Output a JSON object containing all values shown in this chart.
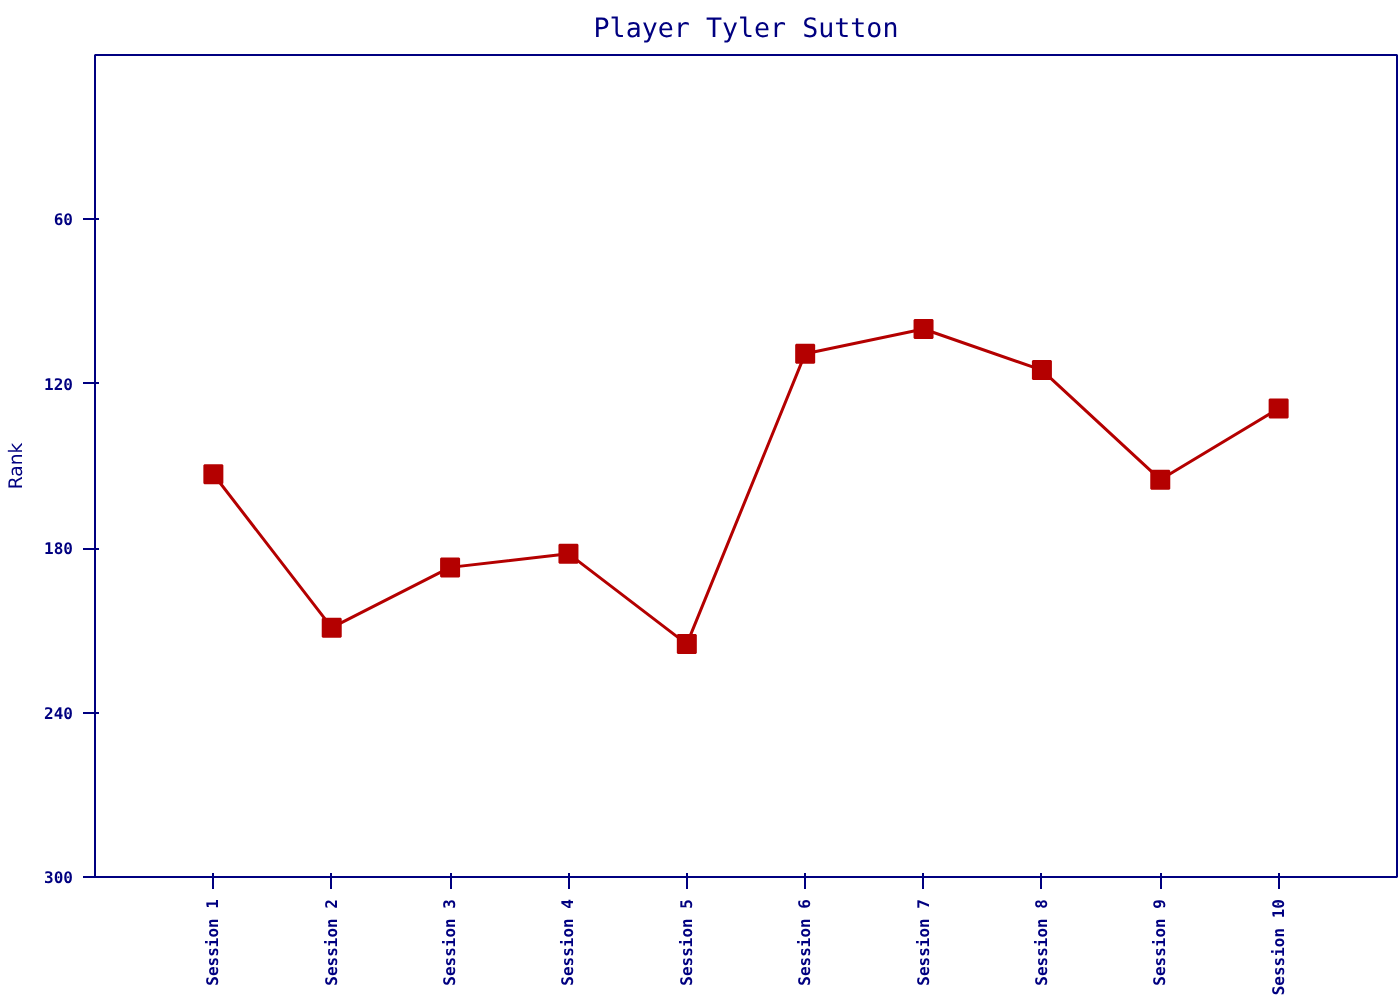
{
  "chart_data": {
    "type": "line",
    "title": "Player Tyler Sutton",
    "ylabel": "Rank",
    "categories": [
      "Session 1",
      "Session 2",
      "Session 3",
      "Session 4",
      "Session 5",
      "Session 6",
      "Session 7",
      "Session 8",
      "Session 9",
      "Session 10"
    ],
    "series": [
      {
        "color": "#b40000",
        "values": [
          153,
          209,
          187,
          182,
          215,
          109,
          100,
          115,
          155,
          129
        ]
      }
    ],
    "ylim": [
      300,
      0
    ],
    "yticks": [
      60,
      120,
      180,
      240,
      300
    ],
    "grid": false,
    "marker": "square",
    "line_style": "solid"
  }
}
